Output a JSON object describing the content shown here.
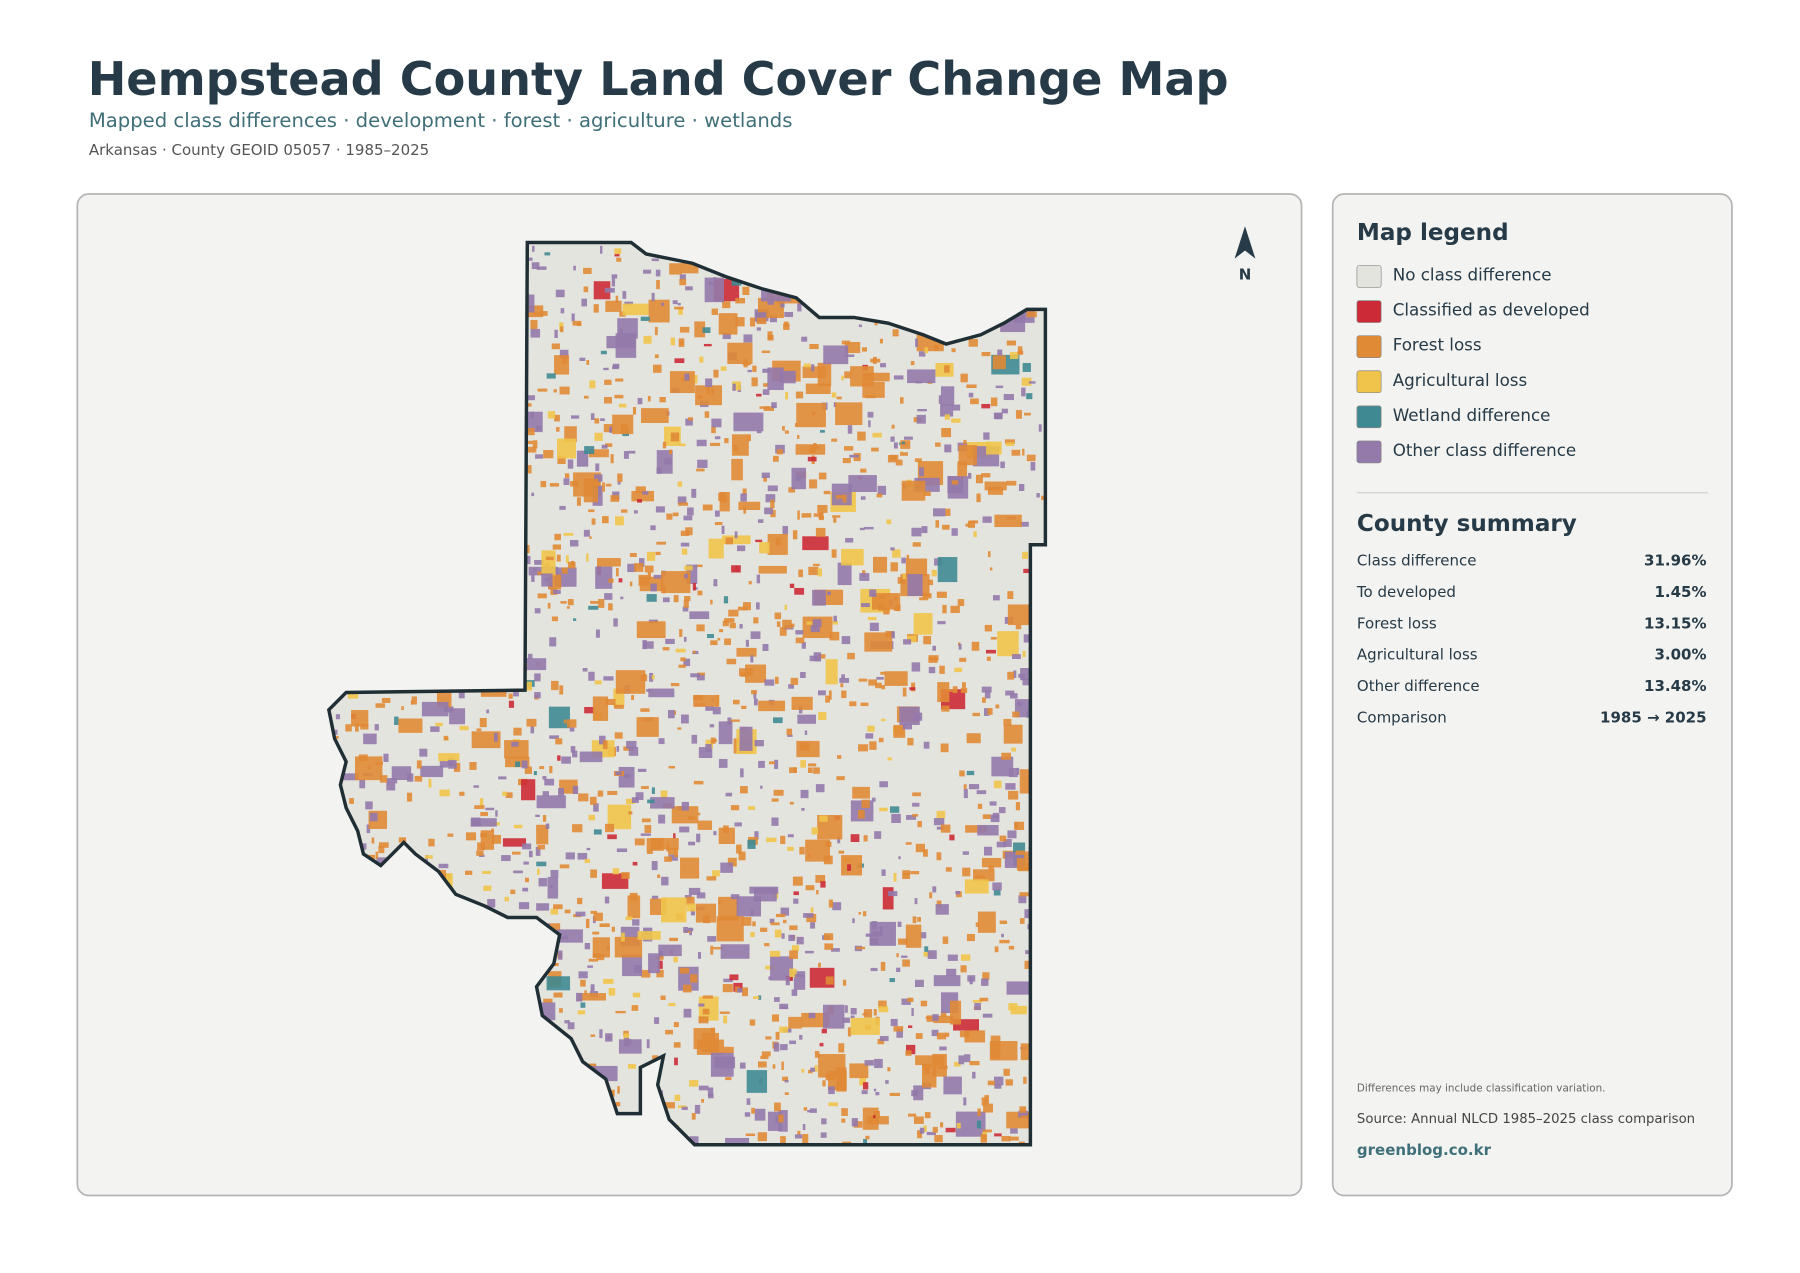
{
  "header": {
    "title": "Hempstead County Land Cover Change Map",
    "subtitle": "Mapped class differences · development · forest · agriculture · wetlands",
    "meta": "Arkansas · County GEOID 05057 · 1985–2025"
  },
  "map": {
    "north_label": "N"
  },
  "legend": {
    "title": "Map legend",
    "items": [
      {
        "label": "No class difference",
        "color": "#e4e4df"
      },
      {
        "label": "Classified as developed",
        "color": "#cc2a36"
      },
      {
        "label": "Forest loss",
        "color": "#e08a35"
      },
      {
        "label": "Agricultural loss",
        "color": "#f0c44a"
      },
      {
        "label": "Wetland difference",
        "color": "#3f8a92"
      },
      {
        "label": "Other class difference",
        "color": "#9479ab"
      }
    ]
  },
  "summary": {
    "title": "County summary",
    "rows": [
      {
        "label": "Class difference",
        "value": "31.96%"
      },
      {
        "label": "To developed",
        "value": "1.45%"
      },
      {
        "label": "Forest loss",
        "value": "13.15%"
      },
      {
        "label": "Agricultural loss",
        "value": "3.00%"
      },
      {
        "label": "Other difference",
        "value": "13.48%"
      },
      {
        "label": "Comparison",
        "value": "1985 → 2025"
      }
    ]
  },
  "footer": {
    "note": "Differences may include classification variation.",
    "source": "Source: Annual NLCD 1985–2025 class comparison",
    "credit": "greenblog.co.kr"
  }
}
